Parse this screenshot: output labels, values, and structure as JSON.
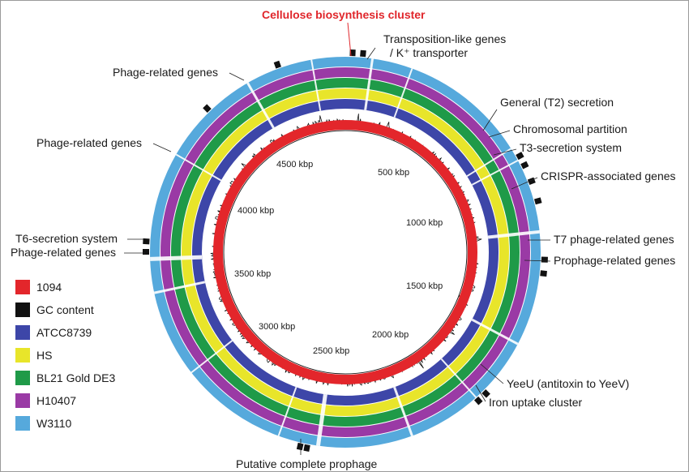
{
  "title": "Cellulose biosynthesis cluster",
  "colors": {
    "ref": "#e3262b",
    "gc": "#111111",
    "ATCC8739": "#3d46a8",
    "HS": "#e8e52a",
    "BL21": "#1f9a48",
    "H10407": "#9a3aa5",
    "W3110": "#56a9dc",
    "title": "#e0262b"
  },
  "rings": [
    {
      "name": "ATCC8739",
      "color": "#3d46a8"
    },
    {
      "name": "HS",
      "color": "#e8e52a"
    },
    {
      "name": "BL21 Gold DE3",
      "color": "#1f9a48"
    },
    {
      "name": "H10407",
      "color": "#9a3aa5"
    },
    {
      "name": "W3110",
      "color": "#56a9dc"
    }
  ],
  "legend": [
    {
      "label": "1094",
      "color": "#e3262b",
      "text_color": "#e3262b"
    },
    {
      "label": "GC content",
      "color": "#111111",
      "text_color": "#1a1a1a"
    },
    {
      "label": "ATCC8739",
      "color": "#3d46a8",
      "text_color": "#1a1a1a"
    },
    {
      "label": "HS",
      "color": "#e8e52a",
      "text_color": "#1a1a1a"
    },
    {
      "label": "BL21 Gold DE3",
      "color": "#1f9a48",
      "text_color": "#1a1a1a"
    },
    {
      "label": "H10407",
      "color": "#9a3aa5",
      "text_color": "#1a1a1a"
    },
    {
      "label": "W3110",
      "color": "#56a9dc",
      "text_color": "#1a1a1a"
    }
  ],
  "kbp_labels": [
    "500 kbp",
    "1000 kbp",
    "1500 kbp",
    "2000 kbp",
    "2500 kbp",
    "3000 kbp",
    "3500 kbp",
    "4000 kbp",
    "4500 kbp"
  ],
  "annotations": [
    {
      "id": "transposition",
      "lines": [
        "Transposition-like genes",
        "/ K⁺ transporter"
      ]
    },
    {
      "id": "t2",
      "lines": [
        "General (T2) secretion"
      ]
    },
    {
      "id": "chromo",
      "lines": [
        "Chromosomal partition"
      ]
    },
    {
      "id": "t3",
      "lines": [
        "T3-secretion system"
      ]
    },
    {
      "id": "crispr",
      "lines": [
        "CRISPR-associated genes"
      ]
    },
    {
      "id": "t7",
      "lines": [
        "T7 phage-related genes"
      ]
    },
    {
      "id": "prophage",
      "lines": [
        "Prophage-related genes"
      ]
    },
    {
      "id": "yeeu",
      "lines": [
        "YeeU (antitoxin to YeeV)"
      ]
    },
    {
      "id": "iron",
      "lines": [
        "Iron uptake cluster"
      ]
    },
    {
      "id": "putative",
      "lines": [
        "Putative complete prophage"
      ]
    },
    {
      "id": "phage1",
      "lines": [
        "Phage-related genes"
      ]
    },
    {
      "id": "phage2",
      "lines": [
        "Phage-related genes"
      ]
    },
    {
      "id": "t6",
      "lines": [
        "T6-secretion system"
      ]
    },
    {
      "id": "phage3",
      "lines": [
        "Phage-related genes"
      ]
    }
  ]
}
